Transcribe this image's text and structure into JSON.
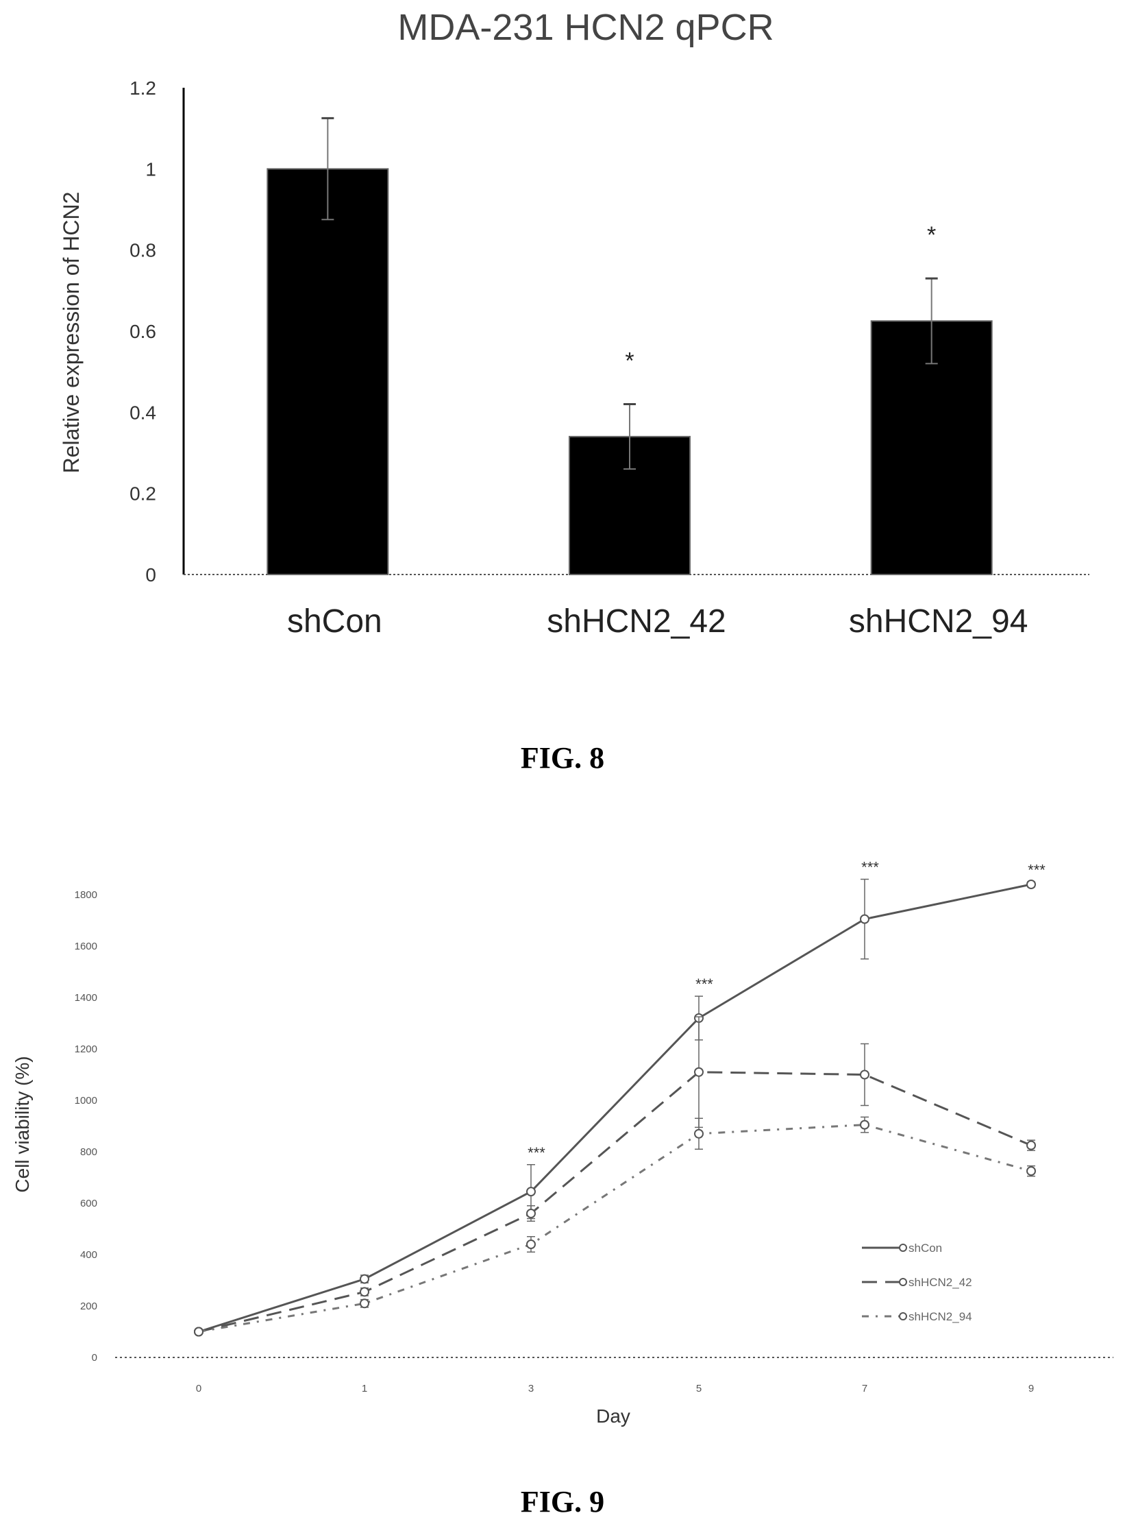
{
  "figures": {
    "fig8_caption": "FIG. 8",
    "fig9_caption": "FIG. 9"
  },
  "chart_data": [
    {
      "type": "bar",
      "title": "MDA-231 HCN2 qPCR",
      "xlabel": "",
      "ylabel": "Relative expression of HCN2",
      "categories": [
        "shCon",
        "shHCN2_42",
        "shHCN2_94"
      ],
      "values": [
        1.0,
        0.34,
        0.625
      ],
      "errors": [
        0.125,
        0.08,
        0.105
      ],
      "annotations": [
        "",
        "*",
        "*"
      ],
      "ylim": [
        0,
        1.2
      ],
      "yticks": [
        0,
        0.2,
        0.4,
        0.6,
        0.8,
        1,
        1.2
      ],
      "ytick_labels": [
        "0",
        "0.2",
        "0.4",
        "0.6",
        "0.8",
        "1",
        "1.2"
      ],
      "bar_color": "#000000",
      "grid": false
    },
    {
      "type": "line",
      "title": "",
      "xlabel": "Day",
      "ylabel": "Cell viability (%)",
      "x": [
        "0",
        "1",
        "3",
        "5",
        "7",
        "9"
      ],
      "ylim": [
        0,
        1800
      ],
      "yticks": [
        0,
        200,
        400,
        600,
        800,
        1000,
        1200,
        1400,
        1600,
        1800
      ],
      "ytick_labels": [
        "0",
        "200",
        "400",
        "600",
        "800",
        "1000",
        "1200",
        "1400",
        "1600",
        "1800"
      ],
      "series": [
        {
          "name": "shCon",
          "values": [
            100,
            305,
            645,
            1320,
            1705,
            1840
          ],
          "errors": [
            8,
            15,
            105,
            85,
            155,
            10
          ],
          "style": "solid"
        },
        {
          "name": "shHCN2_42",
          "values": [
            100,
            255,
            560,
            1110,
            1100,
            825
          ],
          "errors": [
            8,
            15,
            30,
            215,
            120,
            20
          ],
          "style": "dashed"
        },
        {
          "name": "shHCN2_94",
          "values": [
            100,
            210,
            440,
            870,
            905,
            725
          ],
          "errors": [
            8,
            15,
            30,
            60,
            30,
            20
          ],
          "style": "dashdot"
        }
      ],
      "annotations": [
        {
          "x": "3",
          "text": "***"
        },
        {
          "x": "5",
          "text": "***"
        },
        {
          "x": "7",
          "text": "***"
        },
        {
          "x": "9",
          "text": "***"
        }
      ],
      "legend_position": "bottom-right",
      "grid": false
    }
  ]
}
